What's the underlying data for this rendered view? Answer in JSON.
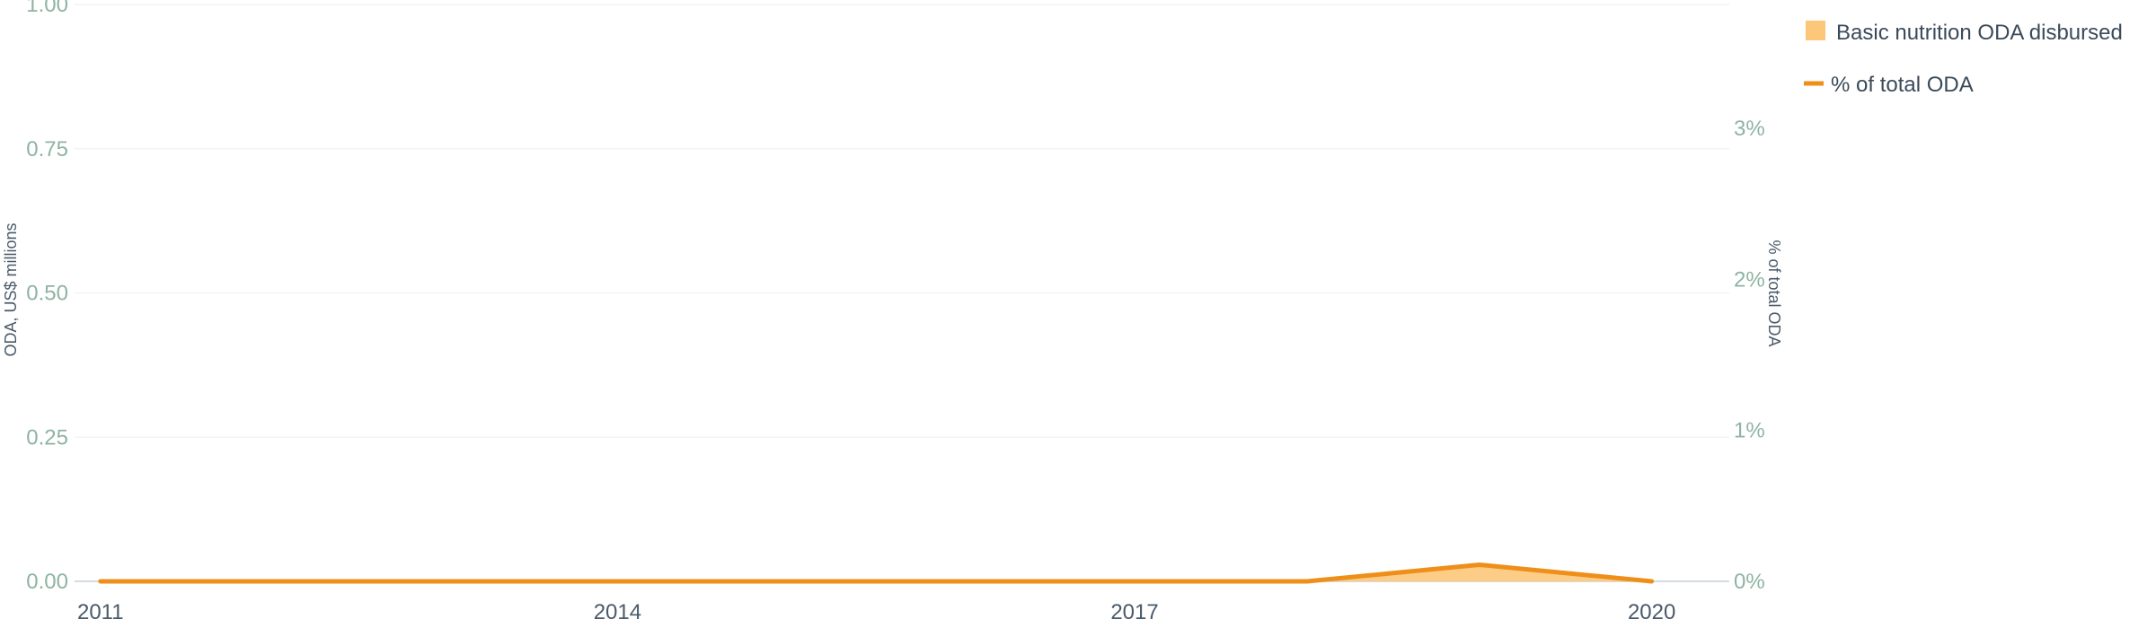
{
  "chart_data": {
    "type": "area",
    "x": [
      2011,
      2012,
      2013,
      2014,
      2015,
      2016,
      2017,
      2018,
      2019,
      2020
    ],
    "x_ticks": [
      "2011",
      "2014",
      "2017",
      "2020"
    ],
    "series": [
      {
        "name": "Basic nutrition ODA disbursed",
        "type": "area",
        "axis": "left",
        "color": "#fdc77a",
        "values": [
          0,
          0,
          0,
          0,
          0,
          0,
          0,
          0,
          0.028,
          0
        ]
      },
      {
        "name": "% of total ODA",
        "type": "line",
        "axis": "right",
        "color": "#ee8f1a",
        "values": [
          0,
          0,
          0,
          0,
          0,
          0,
          0,
          0,
          0.11,
          0
        ]
      }
    ],
    "y_left": {
      "label": "ODA, US$ millions",
      "range": [
        0,
        1
      ],
      "ticks": [
        "0.00",
        "0.25",
        "0.50",
        "0.75",
        "1.00"
      ]
    },
    "y_right": {
      "label": "% of total ODA",
      "range": [
        0,
        3.82
      ],
      "tick_values": [
        0,
        1,
        2,
        3
      ],
      "ticks": [
        "0%",
        "1%",
        "2%",
        "3%"
      ]
    },
    "grid": true,
    "legend": "top-right"
  }
}
